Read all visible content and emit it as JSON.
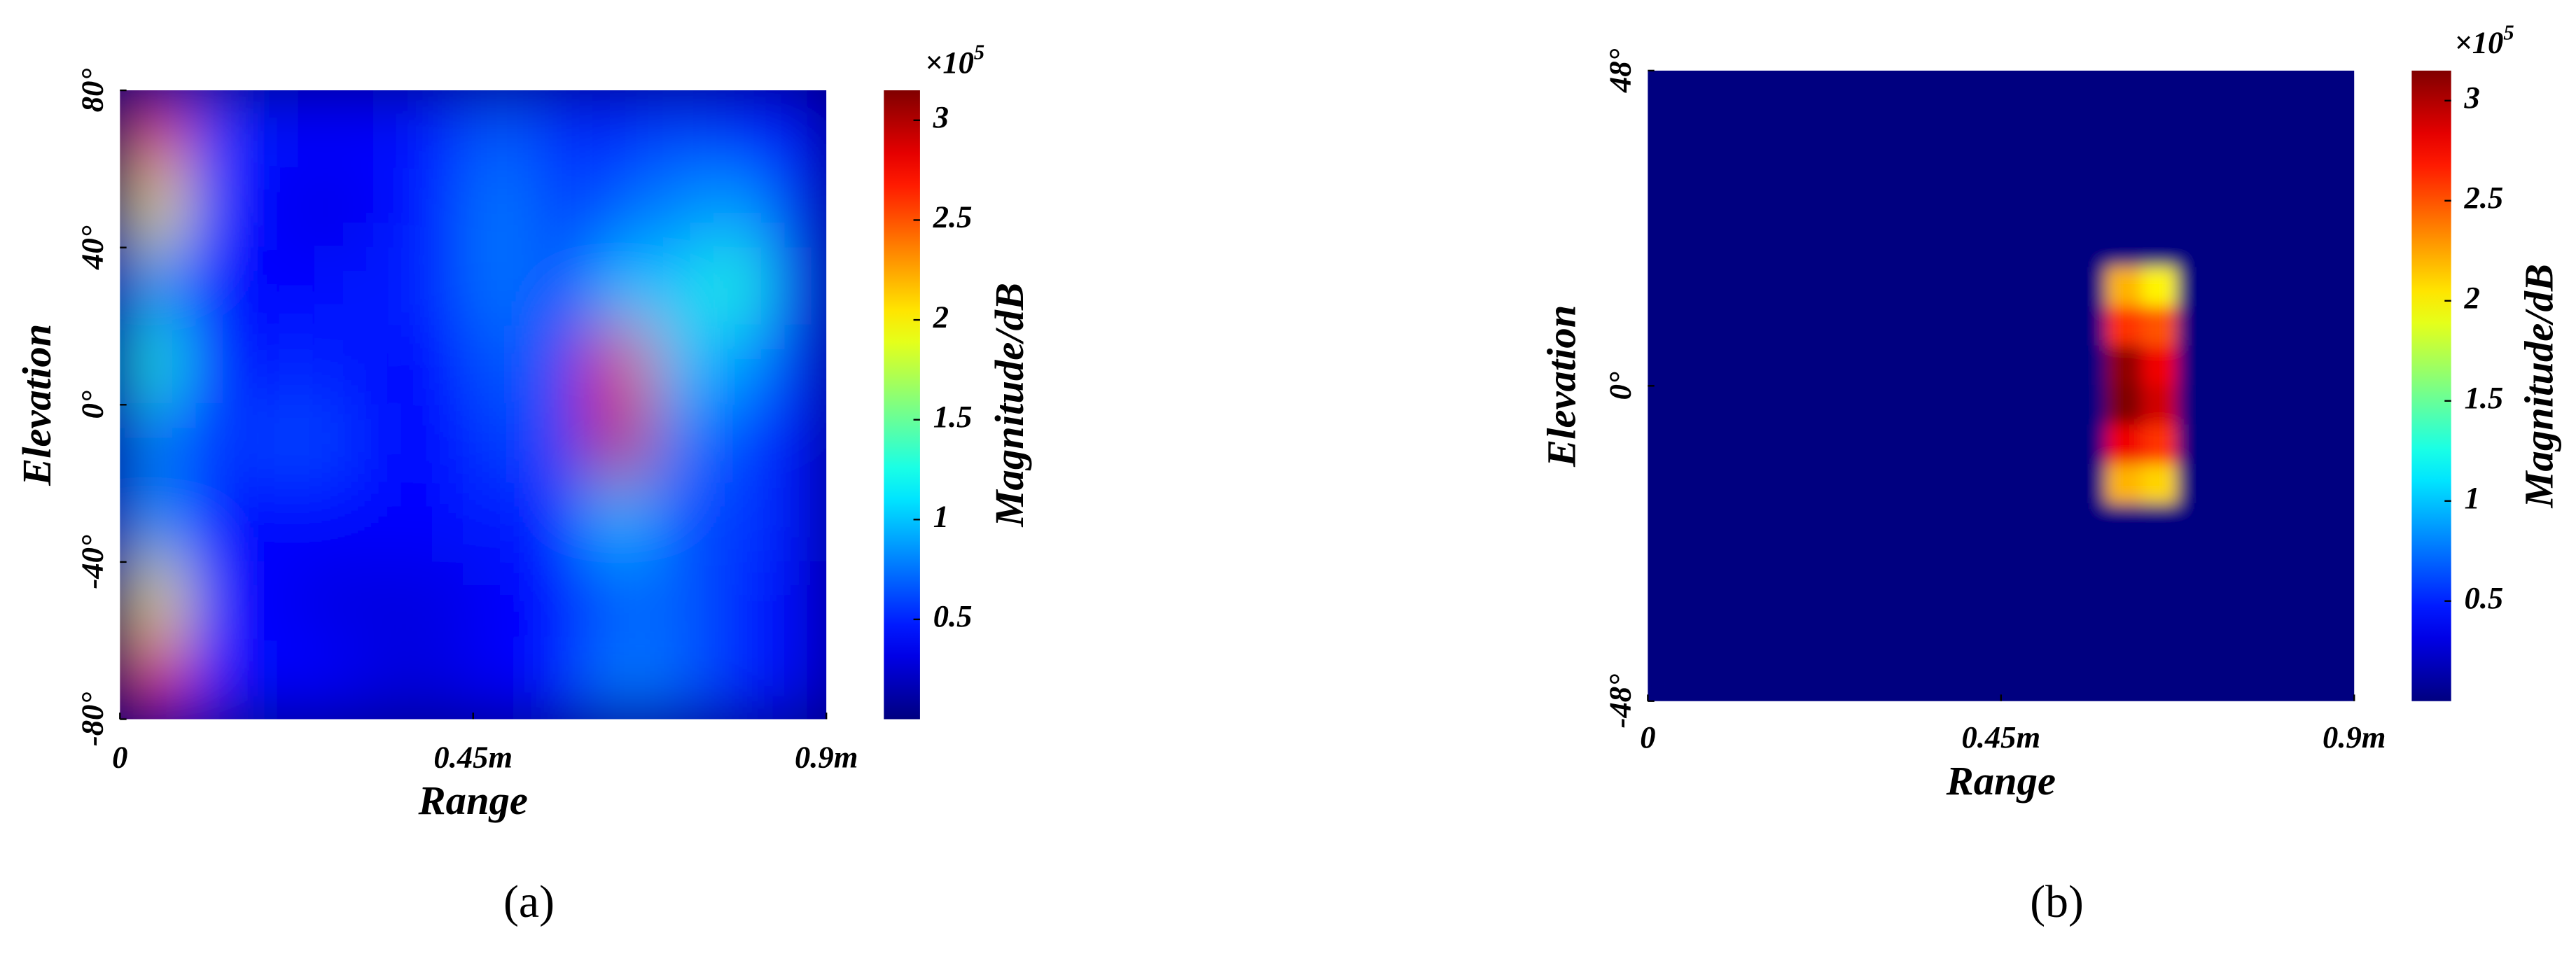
{
  "chart_data": [
    {
      "type": "heatmap",
      "x_label": "Range",
      "y_label": "Elevation",
      "colorbar_label": "Magnitude/dB",
      "colorbar_scale": {
        "base": "×10",
        "exponent": "5"
      },
      "caption": "(a)",
      "colormap": "jet",
      "xlim": [
        0,
        0.9
      ],
      "xticks": [
        0,
        {
          "value": 0.45,
          "label": "0.45m"
        },
        {
          "value": 0.9,
          "label": "0.9m"
        }
      ],
      "ylim": [
        -80,
        80
      ],
      "yticks": [
        {
          "value": 80,
          "label": "80°"
        },
        {
          "value": 40,
          "label": "40°"
        },
        {
          "value": 0,
          "label": "0°"
        },
        {
          "value": -40,
          "label": "-40°"
        },
        {
          "value": -80,
          "label": "-80°"
        }
      ],
      "clim": [
        0,
        3.15
      ],
      "cticks": [
        0.5,
        1,
        1.5,
        2,
        2.5,
        3
      ],
      "x": [
        0.0375,
        0.1125,
        0.1875,
        0.2625,
        0.3375,
        0.4125,
        0.4875,
        0.5625,
        0.6375,
        0.7125,
        0.7875,
        0.8625
      ],
      "y": [
        70,
        50,
        30,
        10,
        -10,
        -30,
        -50,
        -70
      ],
      "z": [
        [
          2.6,
          0.6,
          0.4,
          0.4,
          0.4,
          0.5,
          0.7,
          0.5,
          0.5,
          0.6,
          0.5,
          0.4
        ],
        [
          2.0,
          0.5,
          0.4,
          0.3,
          0.4,
          0.5,
          0.8,
          0.5,
          0.7,
          0.8,
          0.9,
          0.5
        ],
        [
          0.9,
          0.4,
          0.4,
          0.4,
          0.5,
          0.5,
          0.8,
          0.5,
          1.0,
          1.0,
          1.3,
          0.6
        ],
        [
          1.3,
          0.4,
          0.5,
          0.5,
          0.4,
          0.4,
          0.7,
          0.6,
          2.8,
          1.0,
          0.9,
          0.5
        ],
        [
          0.8,
          0.5,
          0.6,
          0.6,
          0.4,
          0.4,
          0.6,
          0.6,
          2.9,
          0.8,
          0.6,
          0.4
        ],
        [
          0.9,
          0.4,
          0.4,
          0.4,
          0.4,
          0.4,
          0.5,
          0.4,
          1.0,
          0.6,
          0.6,
          0.4
        ],
        [
          2.0,
          0.4,
          0.4,
          0.3,
          0.3,
          0.3,
          0.4,
          0.4,
          0.7,
          0.7,
          0.5,
          0.4
        ],
        [
          2.7,
          0.5,
          0.4,
          0.4,
          0.3,
          0.3,
          0.4,
          0.4,
          0.8,
          0.7,
          0.5,
          0.4
        ]
      ]
    },
    {
      "type": "heatmap",
      "x_label": "Range",
      "y_label": "Elevation",
      "colorbar_label": "Magnitude/dB",
      "colorbar_scale": {
        "base": "×10",
        "exponent": "5"
      },
      "caption": "(b)",
      "colormap": "jet",
      "xlim": [
        0,
        0.9
      ],
      "xticks": [
        0,
        {
          "value": 0.45,
          "label": "0.45m"
        },
        {
          "value": 0.9,
          "label": "0.9m"
        }
      ],
      "ylim": [
        -48,
        48
      ],
      "yticks": [
        {
          "value": 48,
          "label": "48°"
        },
        {
          "value": 0,
          "label": "0°"
        },
        {
          "value": -48,
          "label": "-48°"
        }
      ],
      "clim": [
        0,
        3.15
      ],
      "cticks": [
        0.5,
        1,
        1.5,
        2,
        2.5,
        3
      ],
      "x": [
        0.0225,
        0.0675,
        0.1125,
        0.1575,
        0.2025,
        0.2475,
        0.2925,
        0.3375,
        0.3825,
        0.4275,
        0.4725,
        0.5175,
        0.5625,
        0.6075,
        0.6525,
        0.6975,
        0.7425,
        0.7875,
        0.8325,
        0.8775
      ],
      "y": [
        45,
        39,
        33,
        27,
        21,
        15,
        9,
        3,
        -3,
        -9,
        -15,
        -21,
        -27,
        -33,
        -39,
        -45
      ],
      "z": [
        [
          0,
          0,
          0,
          0,
          0,
          0,
          0,
          0,
          0,
          0,
          0,
          0,
          0,
          0,
          0,
          0,
          0,
          0,
          0,
          0
        ],
        [
          0,
          0,
          0,
          0,
          0,
          0,
          0,
          0,
          0,
          0,
          0,
          0,
          0,
          0,
          0,
          0,
          0,
          0,
          0,
          0
        ],
        [
          0,
          0,
          0,
          0,
          0,
          0,
          0,
          0,
          0,
          0,
          0,
          0,
          0,
          0,
          0,
          0,
          0,
          0,
          0,
          0
        ],
        [
          0,
          0,
          0,
          0,
          0,
          0,
          0,
          0,
          0,
          0,
          0,
          0,
          0,
          0,
          0,
          0,
          0,
          0,
          0,
          0
        ],
        [
          0,
          0,
          0,
          0,
          0,
          0,
          0,
          0,
          0,
          0,
          0,
          0,
          0,
          0,
          0,
          0,
          0,
          0,
          0,
          0
        ],
        [
          0,
          0,
          0,
          0,
          0,
          0,
          0,
          0,
          0,
          0,
          0,
          0,
          0,
          2.2,
          2.0,
          0,
          0,
          0,
          0,
          0
        ],
        [
          0,
          0,
          0,
          0,
          0,
          0,
          0,
          0,
          0,
          0,
          0,
          0,
          0,
          2.6,
          2.5,
          0,
          0,
          0,
          0,
          0
        ],
        [
          0,
          0,
          0,
          0,
          0,
          0,
          0,
          0,
          0,
          0,
          0,
          0,
          0,
          3.1,
          2.8,
          0,
          0,
          0,
          0,
          0
        ],
        [
          0,
          0,
          0,
          0,
          0,
          0,
          0,
          0,
          0,
          0,
          0,
          0,
          0,
          3.15,
          2.9,
          0,
          0,
          0,
          0,
          0
        ],
        [
          0,
          0,
          0,
          0,
          0,
          0,
          0,
          0,
          0,
          0,
          0,
          0,
          0,
          2.8,
          2.6,
          0,
          0,
          0,
          0,
          0
        ],
        [
          0,
          0,
          0,
          0,
          0,
          0,
          0,
          0,
          0,
          0,
          0,
          0,
          0,
          2.2,
          2.1,
          0,
          0,
          0,
          0,
          0
        ],
        [
          0,
          0,
          0,
          0,
          0,
          0,
          0,
          0,
          0,
          0,
          0,
          0,
          0,
          0,
          0,
          0,
          0,
          0,
          0,
          0
        ],
        [
          0,
          0,
          0,
          0,
          0,
          0,
          0,
          0,
          0,
          0,
          0,
          0,
          0,
          0,
          0,
          0,
          0,
          0,
          0,
          0
        ],
        [
          0,
          0,
          0,
          0,
          0,
          0,
          0,
          0,
          0,
          0,
          0,
          0,
          0,
          0,
          0,
          0,
          0,
          0,
          0,
          0
        ],
        [
          0,
          0,
          0,
          0,
          0,
          0,
          0,
          0,
          0,
          0,
          0,
          0,
          0,
          0,
          0,
          0,
          0,
          0,
          0,
          0
        ],
        [
          0,
          0,
          0,
          0,
          0,
          0,
          0,
          0,
          0,
          0,
          0,
          0,
          0,
          0,
          0,
          0,
          0,
          0,
          0,
          0
        ]
      ]
    }
  ]
}
